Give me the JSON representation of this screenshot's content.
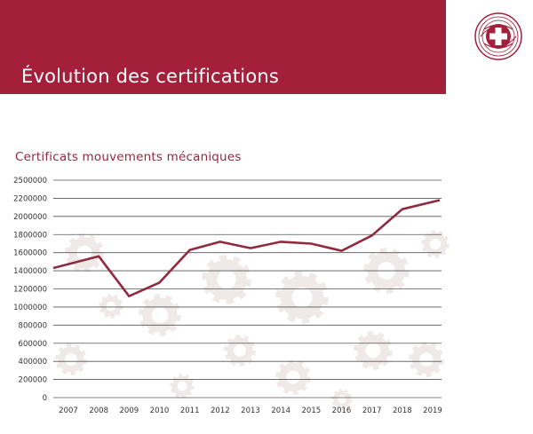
{
  "header": {
    "title": "Évolution des certifications"
  },
  "logo": {
    "icon": "swiss-cross-logo-icon",
    "color": "#a31f3a"
  },
  "chart_data": {
    "type": "line",
    "title": "Certificats mouvements mécaniques",
    "xlabel": "",
    "ylabel": "",
    "categories": [
      "2007",
      "2008",
      "2009",
      "2010",
      "2011",
      "2012",
      "2013",
      "2014",
      "2015",
      "2016",
      "2017",
      "2018",
      "2019"
    ],
    "series": [
      {
        "values": [
          1430000,
          1560000,
          1120000,
          1270000,
          1630000,
          1720000,
          1650000,
          1720000,
          1700000,
          1620000,
          1790000,
          2080000,
          2180000
        ],
        "color": "#8f2a41"
      }
    ],
    "ylim": [
      0,
      2500000
    ],
    "yticks": [
      "0",
      "200000",
      "400000",
      "600000",
      "800000",
      "1000000",
      "1200000",
      "1400000",
      "1600000",
      "1800000",
      "2000000",
      "2200000",
      "2500000"
    ],
    "grid": true,
    "background_motif": "gears",
    "colors": {
      "accent": "#a31f3a",
      "line": "#8f2a41",
      "grid": "#555555",
      "gears": "#efeae8"
    }
  }
}
